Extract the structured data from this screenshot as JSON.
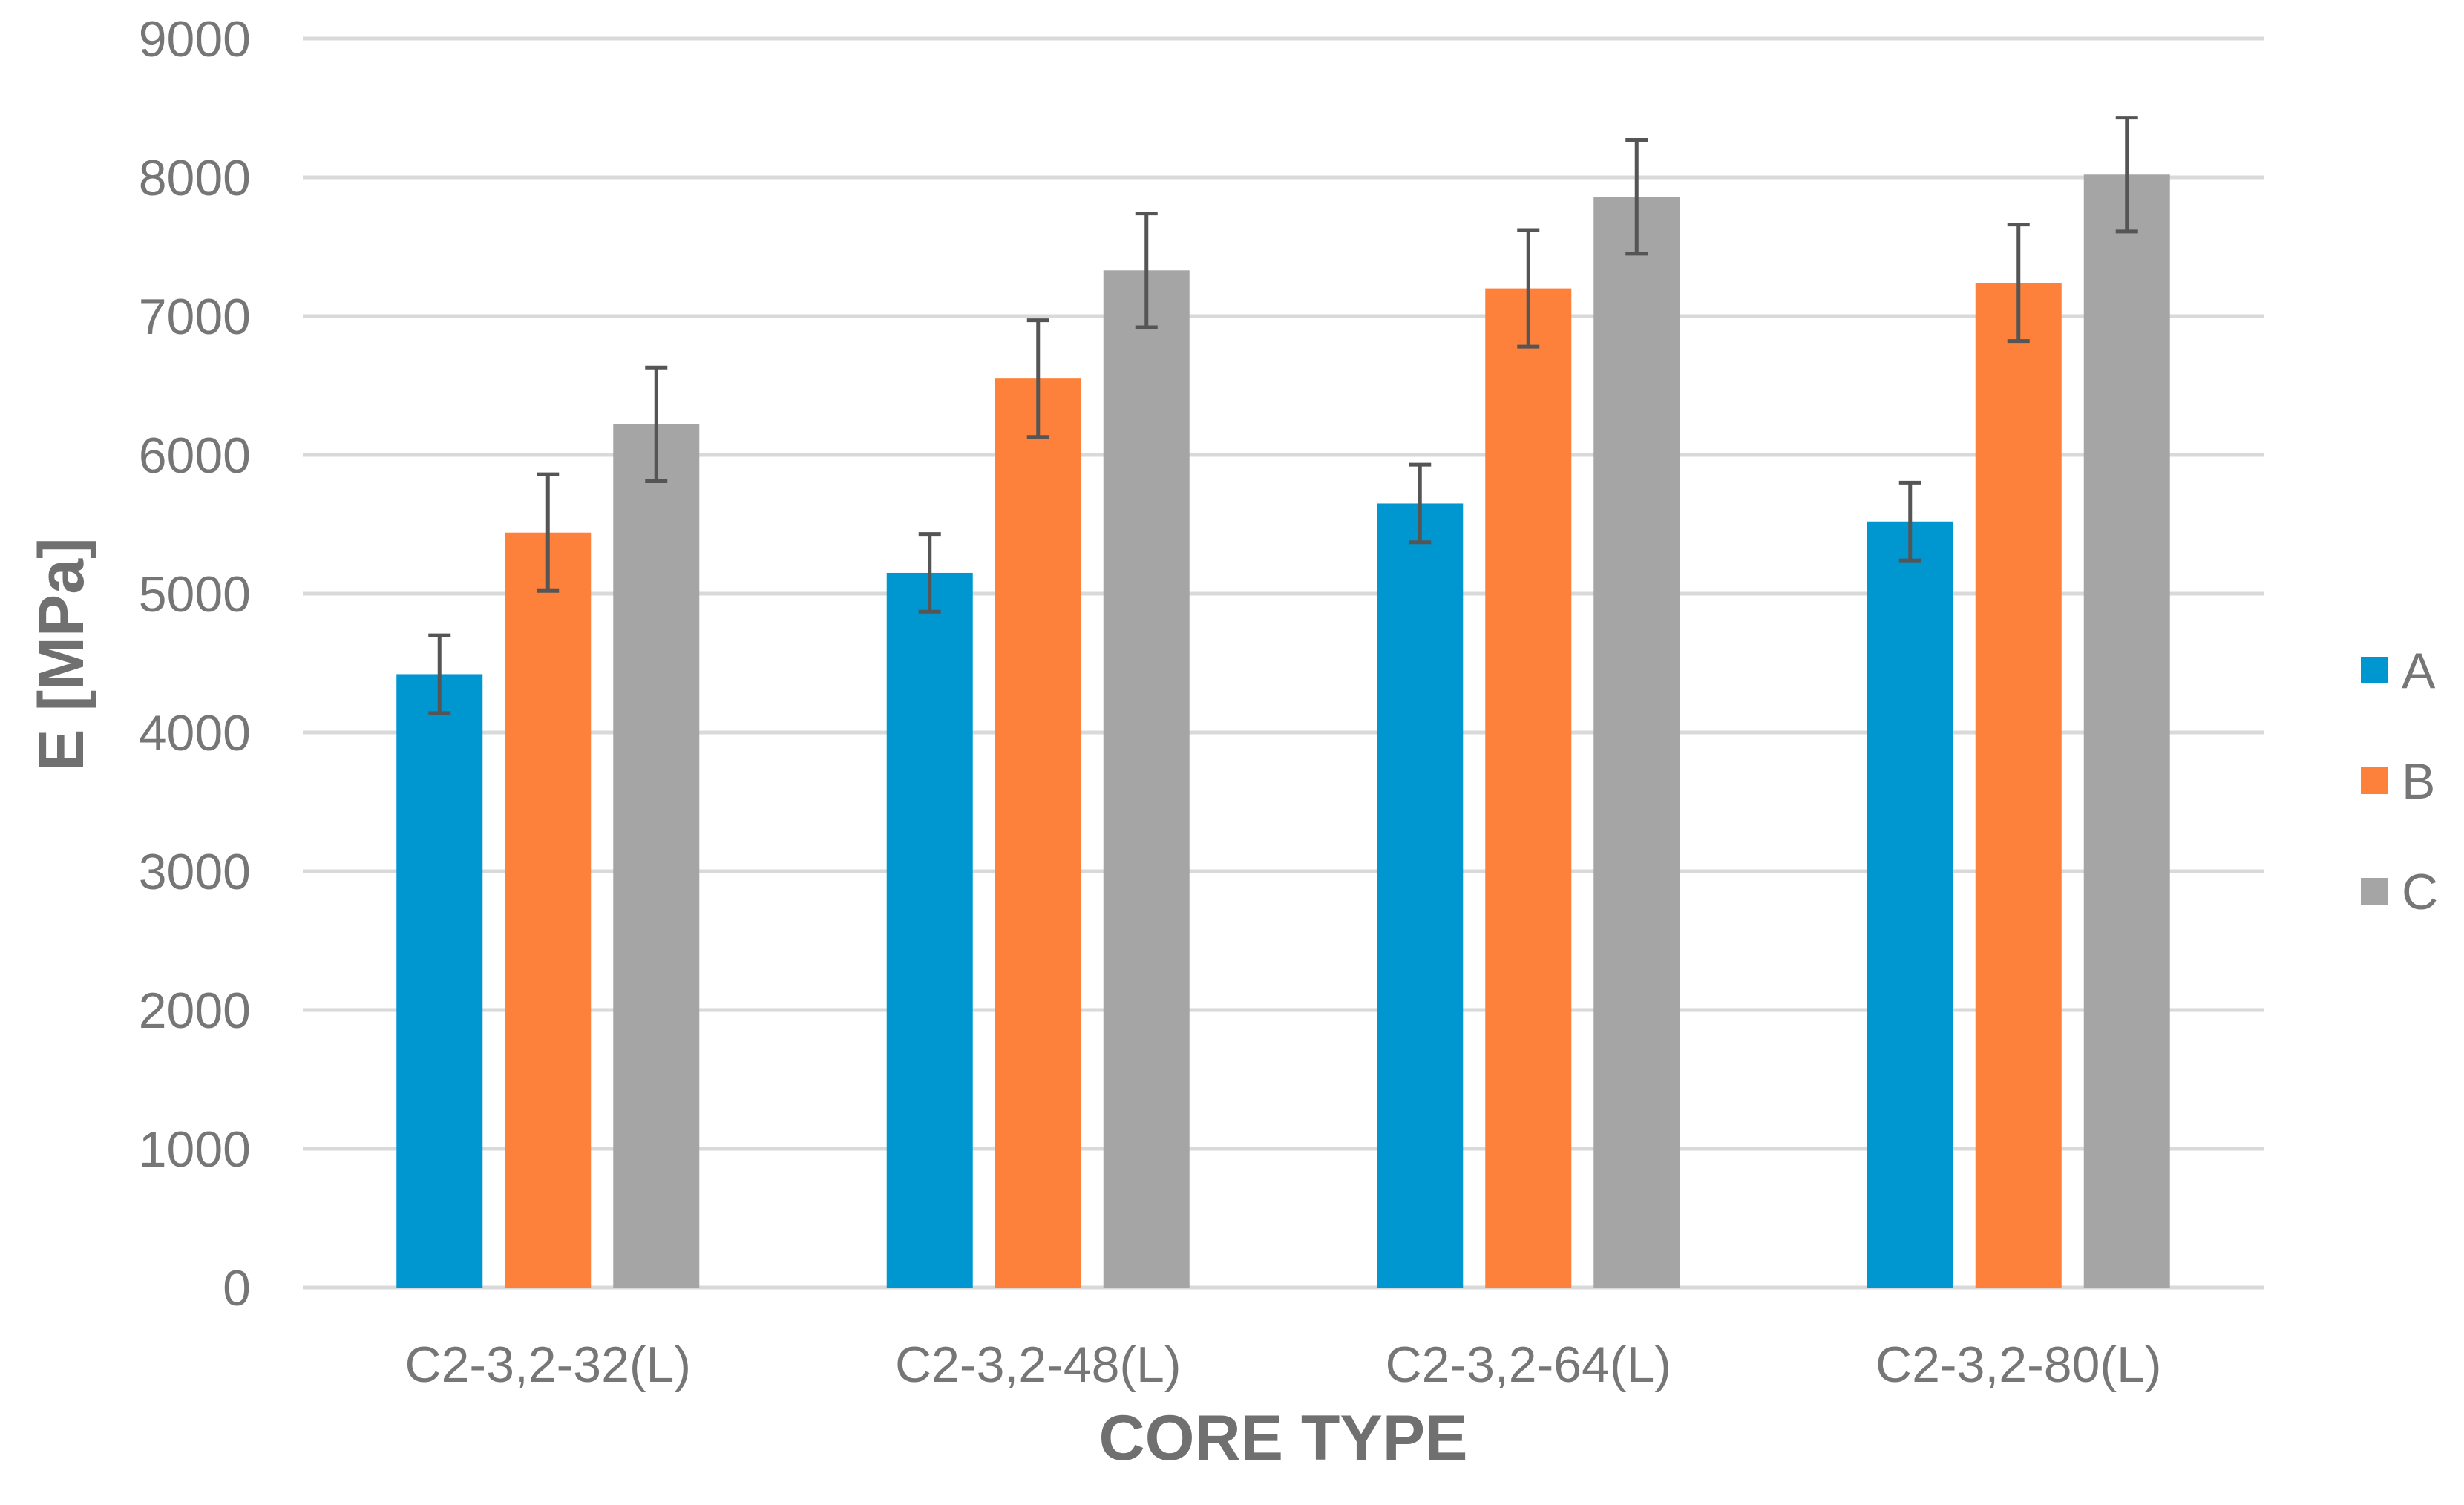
{
  "chart_data": {
    "type": "bar",
    "title": "",
    "xlabel": "CORE TYPE",
    "ylabel": "E [MPa]",
    "ylim": [
      0,
      9000
    ],
    "yticks": [
      0,
      1000,
      2000,
      3000,
      4000,
      5000,
      6000,
      7000,
      8000,
      9000
    ],
    "grid": true,
    "legend_position": "right",
    "categories": [
      "C2-3,2-32(L)",
      "C2-3,2-48(L)",
      "C2-3,2-64(L)",
      "C2-3,2-80(L)"
    ],
    "series": [
      {
        "name": "A",
        "color": "#0097d1",
        "values": [
          4420,
          5150,
          5650,
          5520
        ],
        "errors": [
          280,
          280,
          280,
          280
        ]
      },
      {
        "name": "B",
        "color": "#fd813b",
        "values": [
          5440,
          6550,
          7200,
          7240
        ],
        "errors": [
          420,
          420,
          420,
          420
        ]
      },
      {
        "name": "C",
        "color": "#a5a5a5",
        "values": [
          6220,
          7330,
          7860,
          8020
        ],
        "errors": [
          410,
          410,
          410,
          410
        ]
      }
    ]
  }
}
